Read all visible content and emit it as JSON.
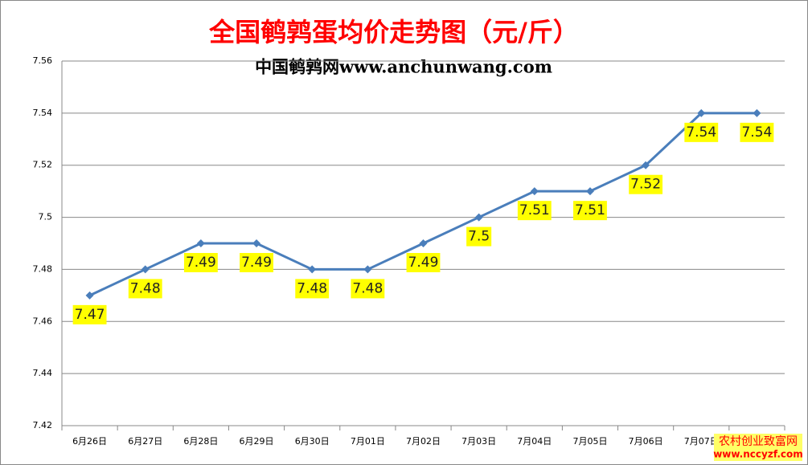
{
  "chart_data": {
    "type": "line",
    "title": "全国鹌鹑蛋均价走势图（元/斤）",
    "subtitle": "中国鹌鹑网www.anchunwang.com",
    "categories": [
      "6月26日",
      "6月27日",
      "6月28日",
      "6月29日",
      "6月30日",
      "7月01日",
      "7月02日",
      "7月03日",
      "7月04日",
      "7月05日",
      "7月06日",
      "7月07日",
      null
    ],
    "values": [
      7.47,
      7.48,
      7.49,
      7.49,
      7.48,
      7.48,
      7.49,
      7.5,
      7.51,
      7.51,
      7.52,
      7.54,
      7.54
    ],
    "color": "#4a7ebb",
    "label_color": "#ffff00",
    "ylim": [
      7.42,
      7.56
    ],
    "yticks": [
      7.42,
      7.44,
      7.46,
      7.48,
      7.5,
      7.52,
      7.54,
      7.56
    ],
    "grid": true,
    "watermark": [
      "农村创业致富网",
      "www.nccyzf.com"
    ]
  }
}
